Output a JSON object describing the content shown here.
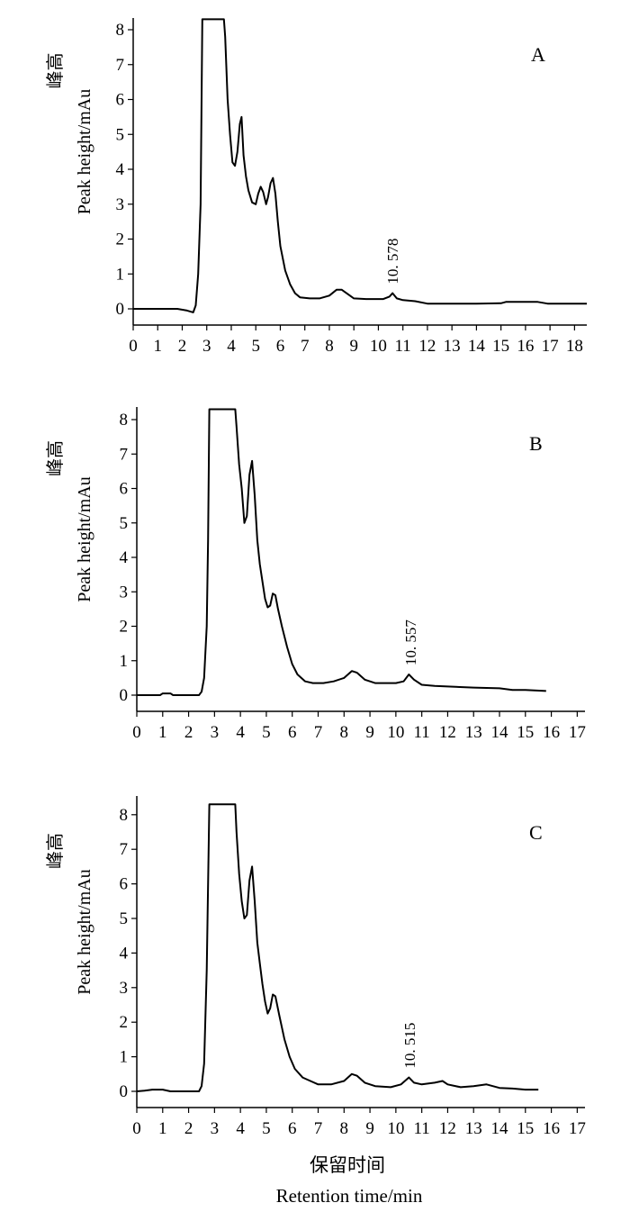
{
  "chart_data": [
    {
      "type": "line",
      "panel": "A",
      "ylabel_zh": "峰高",
      "ylabel": "Peak height/mAu",
      "xlabel_zh": "",
      "xlabel": "",
      "xlim": [
        0,
        18.5
      ],
      "ylim": [
        -0.5,
        8.3
      ],
      "x_ticks": [
        "0",
        "1",
        "2",
        "3",
        "4",
        "5",
        "6",
        "7",
        "8",
        "9",
        "10",
        "11",
        "12",
        "13",
        "14",
        "15",
        "16",
        "17",
        "18"
      ],
      "y_ticks": [
        "0",
        "1",
        "2",
        "3",
        "4",
        "5",
        "6",
        "7",
        "8"
      ],
      "annotations": [
        {
          "text": "10. 578",
          "x": 10.58,
          "y": 0.45
        }
      ],
      "series": [
        {
          "points": [
            [
              0,
              0
            ],
            [
              1,
              0
            ],
            [
              1.8,
              0
            ],
            [
              2.2,
              -0.05
            ],
            [
              2.45,
              -0.1
            ],
            [
              2.55,
              0.1
            ],
            [
              2.65,
              1.0
            ],
            [
              2.75,
              3.0
            ],
            [
              2.82,
              8.3
            ],
            [
              3.7,
              8.3
            ],
            [
              3.75,
              7.8
            ],
            [
              3.85,
              6.0
            ],
            [
              3.95,
              5.0
            ],
            [
              4.05,
              4.2
            ],
            [
              4.15,
              4.1
            ],
            [
              4.25,
              4.5
            ],
            [
              4.35,
              5.3
            ],
            [
              4.42,
              5.5
            ],
            [
              4.5,
              4.4
            ],
            [
              4.6,
              3.8
            ],
            [
              4.7,
              3.4
            ],
            [
              4.85,
              3.05
            ],
            [
              5.0,
              3.0
            ],
            [
              5.1,
              3.3
            ],
            [
              5.2,
              3.5
            ],
            [
              5.3,
              3.35
            ],
            [
              5.42,
              3.0
            ],
            [
              5.5,
              3.2
            ],
            [
              5.6,
              3.6
            ],
            [
              5.7,
              3.75
            ],
            [
              5.8,
              3.3
            ],
            [
              5.9,
              2.5
            ],
            [
              6.0,
              1.8
            ],
            [
              6.2,
              1.1
            ],
            [
              6.4,
              0.7
            ],
            [
              6.6,
              0.45
            ],
            [
              6.8,
              0.33
            ],
            [
              7.2,
              0.3
            ],
            [
              7.6,
              0.3
            ],
            [
              8.0,
              0.38
            ],
            [
              8.3,
              0.55
            ],
            [
              8.5,
              0.55
            ],
            [
              8.7,
              0.45
            ],
            [
              9.0,
              0.3
            ],
            [
              9.5,
              0.28
            ],
            [
              10.2,
              0.28
            ],
            [
              10.45,
              0.35
            ],
            [
              10.58,
              0.45
            ],
            [
              10.75,
              0.3
            ],
            [
              11.0,
              0.25
            ],
            [
              11.5,
              0.22
            ],
            [
              12.0,
              0.15
            ],
            [
              13,
              0.15
            ],
            [
              14,
              0.15
            ],
            [
              15,
              0.16
            ],
            [
              15.2,
              0.2
            ],
            [
              16.0,
              0.2
            ],
            [
              16.5,
              0.2
            ],
            [
              16.9,
              0.15
            ],
            [
              17.5,
              0.15
            ],
            [
              18.5,
              0.15
            ]
          ]
        }
      ]
    },
    {
      "type": "line",
      "panel": "B",
      "ylabel_zh": "峰高",
      "ylabel": "Peak height/mAu",
      "xlabel_zh": "",
      "xlabel": "",
      "xlim": [
        0,
        17.3
      ],
      "ylim": [
        -0.5,
        8.3
      ],
      "x_ticks": [
        "0",
        "1",
        "2",
        "3",
        "4",
        "5",
        "6",
        "7",
        "8",
        "9",
        "10",
        "11",
        "12",
        "13",
        "14",
        "15",
        "16",
        "17"
      ],
      "y_ticks": [
        "0",
        "1",
        "2",
        "3",
        "4",
        "5",
        "6",
        "7",
        "8"
      ],
      "annotations": [
        {
          "text": "10. 557",
          "x": 10.56,
          "y": 0.6
        }
      ],
      "series": [
        {
          "points": [
            [
              0,
              0
            ],
            [
              0.9,
              0
            ],
            [
              1.0,
              0.05
            ],
            [
              1.3,
              0.05
            ],
            [
              1.4,
              0
            ],
            [
              2.4,
              0
            ],
            [
              2.5,
              0.1
            ],
            [
              2.6,
              0.5
            ],
            [
              2.7,
              2.0
            ],
            [
              2.75,
              4.5
            ],
            [
              2.8,
              8.3
            ],
            [
              3.8,
              8.3
            ],
            [
              3.85,
              7.8
            ],
            [
              3.95,
              6.7
            ],
            [
              4.05,
              6.0
            ],
            [
              4.15,
              5.0
            ],
            [
              4.25,
              5.2
            ],
            [
              4.35,
              6.4
            ],
            [
              4.45,
              6.8
            ],
            [
              4.55,
              5.8
            ],
            [
              4.65,
              4.5
            ],
            [
              4.75,
              3.8
            ],
            [
              4.85,
              3.3
            ],
            [
              4.95,
              2.8
            ],
            [
              5.05,
              2.55
            ],
            [
              5.15,
              2.6
            ],
            [
              5.25,
              2.95
            ],
            [
              5.35,
              2.9
            ],
            [
              5.45,
              2.5
            ],
            [
              5.6,
              2.0
            ],
            [
              5.8,
              1.4
            ],
            [
              6.0,
              0.9
            ],
            [
              6.2,
              0.6
            ],
            [
              6.5,
              0.4
            ],
            [
              6.8,
              0.35
            ],
            [
              7.2,
              0.35
            ],
            [
              7.6,
              0.4
            ],
            [
              8.0,
              0.5
            ],
            [
              8.3,
              0.7
            ],
            [
              8.5,
              0.65
            ],
            [
              8.8,
              0.45
            ],
            [
              9.2,
              0.35
            ],
            [
              10.0,
              0.35
            ],
            [
              10.3,
              0.4
            ],
            [
              10.5,
              0.6
            ],
            [
              10.7,
              0.45
            ],
            [
              11.0,
              0.3
            ],
            [
              11.5,
              0.27
            ],
            [
              12,
              0.25
            ],
            [
              13,
              0.22
            ],
            [
              14,
              0.2
            ],
            [
              14.5,
              0.15
            ],
            [
              15,
              0.15
            ],
            [
              15.8,
              0.12
            ]
          ]
        }
      ]
    },
    {
      "type": "line",
      "panel": "C",
      "ylabel_zh": "峰高",
      "ylabel": "Peak height/mAu",
      "xlabel_zh": "保留时间",
      "xlabel": "Retention time/min",
      "xlim": [
        0,
        17.3
      ],
      "ylim": [
        -0.5,
        8.3
      ],
      "x_ticks": [
        "0",
        "1",
        "2",
        "3",
        "4",
        "5",
        "6",
        "7",
        "8",
        "9",
        "10",
        "11",
        "12",
        "13",
        "14",
        "15",
        "16",
        "17"
      ],
      "y_ticks": [
        "0",
        "1",
        "2",
        "3",
        "4",
        "5",
        "6",
        "7",
        "8"
      ],
      "annotations": [
        {
          "text": "10. 515",
          "x": 10.52,
          "y": 0.4
        }
      ],
      "series": [
        {
          "points": [
            [
              0,
              0
            ],
            [
              0.3,
              0.02
            ],
            [
              0.6,
              0.05
            ],
            [
              1.0,
              0.05
            ],
            [
              1.3,
              0
            ],
            [
              2.4,
              0
            ],
            [
              2.5,
              0.15
            ],
            [
              2.6,
              0.8
            ],
            [
              2.7,
              3.5
            ],
            [
              2.8,
              8.3
            ],
            [
              3.8,
              8.3
            ],
            [
              3.85,
              7.5
            ],
            [
              3.95,
              6.3
            ],
            [
              4.05,
              5.5
            ],
            [
              4.15,
              5.0
            ],
            [
              4.25,
              5.1
            ],
            [
              4.35,
              6.1
            ],
            [
              4.45,
              6.5
            ],
            [
              4.55,
              5.5
            ],
            [
              4.65,
              4.3
            ],
            [
              4.75,
              3.7
            ],
            [
              4.85,
              3.1
            ],
            [
              4.95,
              2.6
            ],
            [
              5.05,
              2.25
            ],
            [
              5.15,
              2.4
            ],
            [
              5.25,
              2.8
            ],
            [
              5.35,
              2.75
            ],
            [
              5.5,
              2.2
            ],
            [
              5.7,
              1.5
            ],
            [
              5.9,
              1.0
            ],
            [
              6.1,
              0.65
            ],
            [
              6.4,
              0.4
            ],
            [
              6.7,
              0.3
            ],
            [
              7.0,
              0.2
            ],
            [
              7.5,
              0.2
            ],
            [
              8.0,
              0.3
            ],
            [
              8.3,
              0.5
            ],
            [
              8.5,
              0.45
            ],
            [
              8.8,
              0.25
            ],
            [
              9.2,
              0.15
            ],
            [
              9.8,
              0.12
            ],
            [
              10.2,
              0.2
            ],
            [
              10.5,
              0.4
            ],
            [
              10.7,
              0.25
            ],
            [
              11.0,
              0.2
            ],
            [
              11.5,
              0.25
            ],
            [
              11.8,
              0.3
            ],
            [
              12.0,
              0.2
            ],
            [
              12.5,
              0.12
            ],
            [
              13.0,
              0.15
            ],
            [
              13.5,
              0.2
            ],
            [
              14.0,
              0.1
            ],
            [
              14.5,
              0.08
            ],
            [
              15.0,
              0.05
            ],
            [
              15.5,
              0.05
            ]
          ]
        }
      ]
    }
  ]
}
